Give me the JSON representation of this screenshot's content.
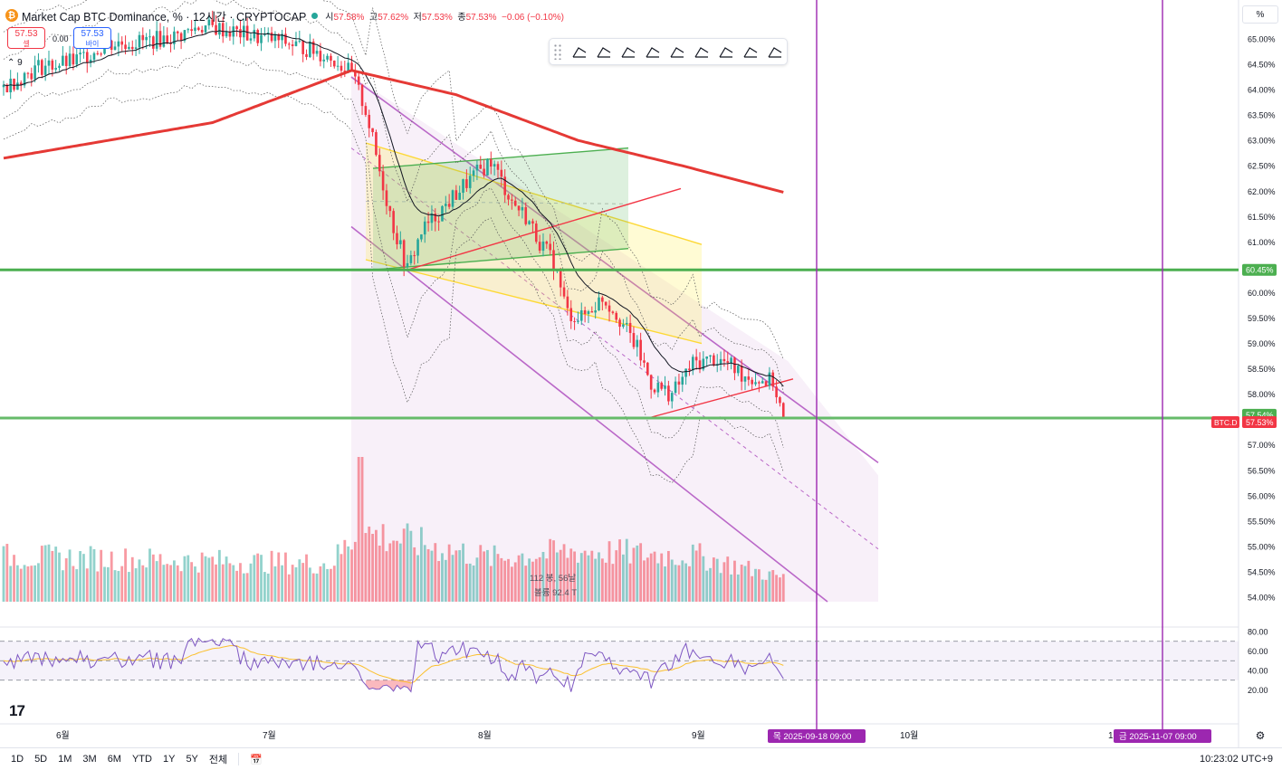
{
  "header": {
    "title": "Market Cap BTC Dominance, % · 12시간 · CRYPTOCAP",
    "open_label": "시",
    "open": "57.58%",
    "high_label": "고",
    "high": "57.62%",
    "low_label": "저",
    "low": "57.53%",
    "close_label": "종",
    "close": "57.53%",
    "change": "−0.06 (−0.10%)"
  },
  "trade": {
    "sell_price": "57.53",
    "sell_label": "셀",
    "spread": "0.00",
    "buy_price": "57.53",
    "buy_label": "바이"
  },
  "indicator_count": "9",
  "unit_button": "%",
  "drawing_tools": [
    "pitchfork-icon",
    "fib-retracement-icon",
    "trend-angle-icon",
    "path-icon",
    "parallel-channel-icon",
    "flat-top-icon",
    "disjoint-channel-icon",
    "fib-timezone-icon",
    "gann-fan-icon"
  ],
  "volume_label": {
    "line1": "112 봉, 56날",
    "line2": "볼륨 92.4 T"
  },
  "time_axis": [
    "6월",
    "7월",
    "8월",
    "9월",
    "10월",
    "1"
  ],
  "time_markers": [
    {
      "label": "목 2025-09-18  09:00",
      "color": "#9c27b0"
    },
    {
      "label": "금 2025-11-07  09:00",
      "color": "#9c27b0"
    }
  ],
  "price_badges": [
    {
      "label": "60.45%",
      "color": "#4caf50"
    },
    {
      "label": "57.54%",
      "color": "#4caf50"
    },
    {
      "label": "57.53%",
      "color": "#f23645"
    }
  ],
  "symbol_badge": "BTC.D",
  "timeframes": [
    "1D",
    "5D",
    "1M",
    "3M",
    "6M",
    "YTD",
    "1Y",
    "5Y",
    "전체"
  ],
  "clock": "10:23:02 UTC+9",
  "colors": {
    "up": "#26a69a",
    "down": "#f23645",
    "sma200": "#e53935",
    "support": "#4caf50",
    "channel": "#ba68c8",
    "vline": "#9c27b0",
    "rsi": "#7e57c2",
    "rsi_ma": "#fbc02d"
  },
  "chart_data": {
    "type": "candlestick",
    "timeframe": "12시간",
    "y_axis": {
      "min": 54.0,
      "max": 65.0,
      "ticks": [
        "65.00%",
        "64.50%",
        "64.00%",
        "63.50%",
        "63.00%",
        "62.50%",
        "62.00%",
        "61.50%",
        "61.00%",
        "60.50%",
        "60.00%",
        "59.50%",
        "59.00%",
        "58.50%",
        "58.00%",
        "57.50%",
        "57.00%",
        "56.50%",
        "56.00%",
        "55.50%",
        "55.00%",
        "54.50%",
        "54.00%"
      ]
    },
    "rsi_axis": {
      "ticks": [
        "80.00",
        "60.00",
        "40.00",
        "20.00"
      ],
      "levels": [
        70,
        50,
        30
      ],
      "min": 0,
      "max": 80
    },
    "month_starts": [
      {
        "label": "6월",
        "index": 16
      },
      {
        "label": "7월",
        "index": 76
      },
      {
        "label": "8월",
        "index": 138
      },
      {
        "label": "9월",
        "index": 200
      }
    ],
    "ohlc_points": [
      [
        0,
        64.05
      ],
      [
        10,
        64.45
      ],
      [
        20,
        64.55
      ],
      [
        30,
        64.9
      ],
      [
        40,
        64.95
      ],
      [
        50,
        65.05
      ],
      [
        56,
        65.25
      ],
      [
        62,
        65.2
      ],
      [
        72,
        65.05
      ],
      [
        80,
        64.95
      ],
      [
        90,
        64.75
      ],
      [
        96,
        64.55
      ],
      [
        100,
        64.3
      ],
      [
        104,
        63.6
      ],
      [
        108,
        62.4
      ],
      [
        112,
        61.3
      ],
      [
        116,
        60.45
      ],
      [
        120,
        61.2
      ],
      [
        126,
        61.65
      ],
      [
        132,
        62.1
      ],
      [
        140,
        62.6
      ],
      [
        146,
        61.8
      ],
      [
        150,
        61.5
      ],
      [
        154,
        61.0
      ],
      [
        158,
        60.6
      ],
      [
        162,
        59.6
      ],
      [
        166,
        59.5
      ],
      [
        172,
        59.9
      ],
      [
        176,
        59.6
      ],
      [
        182,
        58.9
      ],
      [
        186,
        58.2
      ],
      [
        192,
        58.0
      ],
      [
        198,
        58.6
      ],
      [
        204,
        58.7
      ],
      [
        208,
        58.6
      ],
      [
        212,
        58.4
      ],
      [
        216,
        58.3
      ],
      [
        221,
        58.25
      ],
      [
        224,
        57.53
      ]
    ],
    "series": [
      {
        "name": "SMA 200",
        "points": [
          [
            0,
            62.65
          ],
          [
            60,
            63.35
          ],
          [
            100,
            64.38
          ],
          [
            130,
            63.9
          ],
          [
            165,
            63.0
          ],
          [
            195,
            62.5
          ],
          [
            224,
            61.98
          ]
        ]
      },
      {
        "name": "Horizontal support",
        "value": 60.45
      },
      {
        "name": "Horizontal current",
        "value": 57.53
      }
    ],
    "rsi": {
      "period": 14,
      "last": 31.5
    },
    "volume_points": [
      [
        0,
        50
      ],
      [
        60,
        45
      ],
      [
        94,
        42
      ],
      [
        102,
        78
      ],
      [
        140,
        48
      ],
      [
        165,
        56
      ],
      [
        200,
        50
      ],
      [
        224,
        26
      ]
    ]
  }
}
